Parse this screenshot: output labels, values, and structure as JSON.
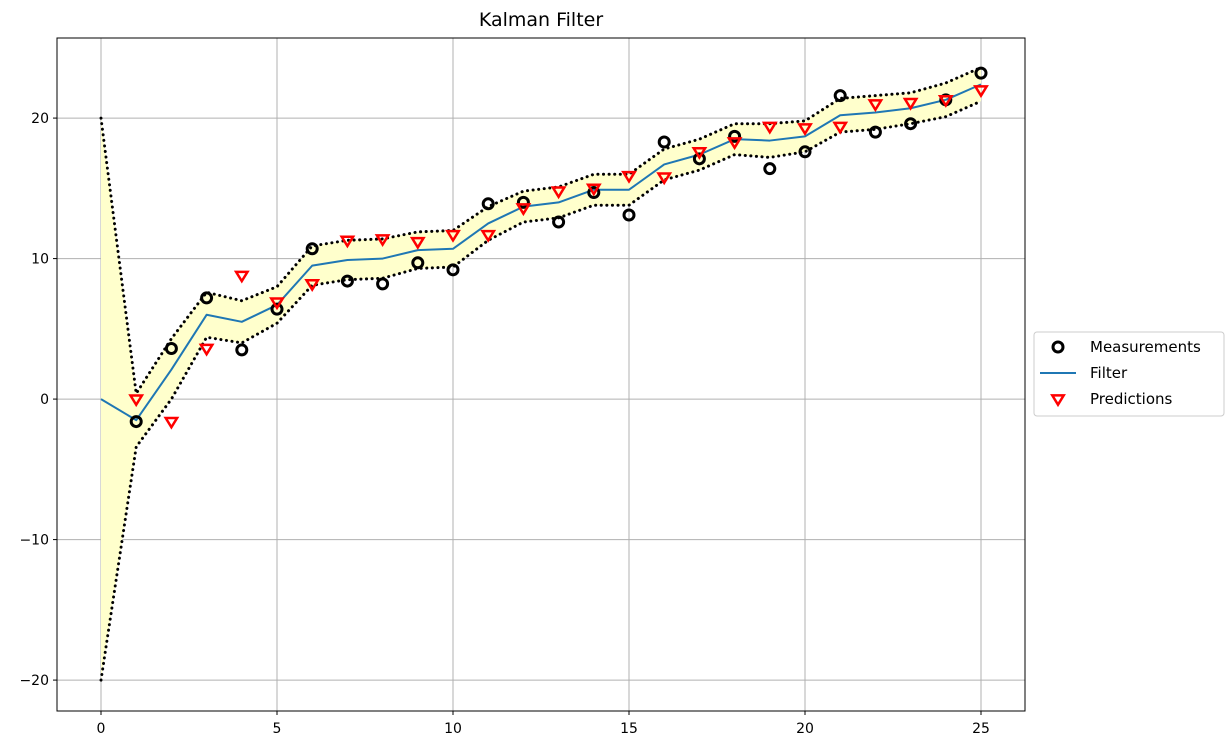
{
  "chart_data": {
    "type": "line",
    "title": "Kalman Filter",
    "xlabel": "",
    "ylabel": "",
    "xlim": [
      -1.25,
      26.25
    ],
    "ylim": [
      -22.2,
      25.7
    ],
    "xticks": [
      0,
      5,
      10,
      15,
      20,
      25
    ],
    "yticks": [
      -20,
      -10,
      0,
      10,
      20
    ],
    "xtick_labels": [
      "0",
      "5",
      "10",
      "15",
      "20",
      "25"
    ],
    "ytick_labels": [
      "−20",
      "−10",
      "0",
      "10",
      "20"
    ],
    "grid": true,
    "legend_position": "outside-right",
    "colors": {
      "measurements": "#000000",
      "filter": "#1f77b4",
      "predictions": "#ff0000",
      "band_fill": "#ffffcc",
      "band_line": "#000000"
    },
    "series": [
      {
        "name": "Measurements",
        "kind": "scatter",
        "marker": "circle-open",
        "x": [
          1,
          2,
          3,
          4,
          5,
          6,
          7,
          8,
          9,
          10,
          11,
          12,
          13,
          14,
          15,
          16,
          17,
          18,
          19,
          20,
          21,
          22,
          23,
          24,
          25
        ],
        "y": [
          -1.6,
          3.6,
          7.2,
          3.5,
          6.4,
          10.7,
          8.4,
          8.2,
          9.7,
          9.2,
          13.9,
          14.0,
          12.6,
          14.7,
          13.1,
          18.3,
          17.1,
          18.7,
          16.4,
          17.6,
          21.6,
          19.0,
          19.6,
          21.3,
          23.2
        ]
      },
      {
        "name": "Filter",
        "kind": "line",
        "x": [
          0,
          1,
          2,
          3,
          4,
          5,
          6,
          7,
          8,
          9,
          10,
          11,
          12,
          13,
          14,
          15,
          16,
          17,
          18,
          19,
          20,
          21,
          22,
          23,
          24,
          25
        ],
        "y": [
          0.0,
          -1.5,
          2.1,
          6.0,
          5.5,
          6.7,
          9.5,
          9.9,
          10.0,
          10.6,
          10.7,
          12.5,
          13.7,
          14.0,
          14.9,
          14.9,
          16.7,
          17.4,
          18.5,
          18.4,
          18.7,
          20.2,
          20.4,
          20.7,
          21.3,
          22.4
        ]
      },
      {
        "name": "Predictions",
        "kind": "scatter",
        "marker": "triangle-down-open",
        "x": [
          1,
          2,
          3,
          4,
          5,
          6,
          7,
          8,
          9,
          10,
          11,
          12,
          13,
          14,
          15,
          16,
          17,
          18,
          19,
          20,
          21,
          22,
          23,
          24,
          25
        ],
        "y": [
          0.0,
          -1.6,
          3.6,
          8.8,
          6.9,
          8.2,
          11.3,
          11.4,
          11.2,
          11.7,
          11.7,
          13.6,
          14.8,
          15.0,
          15.9,
          15.8,
          17.6,
          18.3,
          19.4,
          19.3,
          19.4,
          21.0,
          21.1,
          21.3,
          22.0
        ]
      }
    ],
    "band": {
      "x": [
        0,
        1,
        2,
        3,
        4,
        5,
        6,
        7,
        8,
        9,
        10,
        11,
        12,
        13,
        14,
        15,
        16,
        17,
        18,
        19,
        20,
        21,
        22,
        23,
        24,
        25
      ],
      "upper": [
        20.0,
        0.4,
        4.3,
        7.6,
        7.0,
        8.0,
        10.9,
        11.3,
        11.4,
        11.9,
        12.0,
        13.7,
        14.8,
        15.1,
        16.0,
        16.0,
        17.8,
        18.5,
        19.6,
        19.6,
        19.8,
        21.4,
        21.6,
        21.8,
        22.5,
        23.6
      ],
      "lower": [
        -20.0,
        -3.4,
        0.0,
        4.4,
        4.0,
        5.4,
        8.1,
        8.5,
        8.6,
        9.3,
        9.4,
        11.3,
        12.6,
        12.9,
        13.8,
        13.8,
        15.6,
        16.3,
        17.4,
        17.2,
        17.6,
        19.0,
        19.2,
        19.6,
        20.1,
        21.2
      ]
    }
  }
}
